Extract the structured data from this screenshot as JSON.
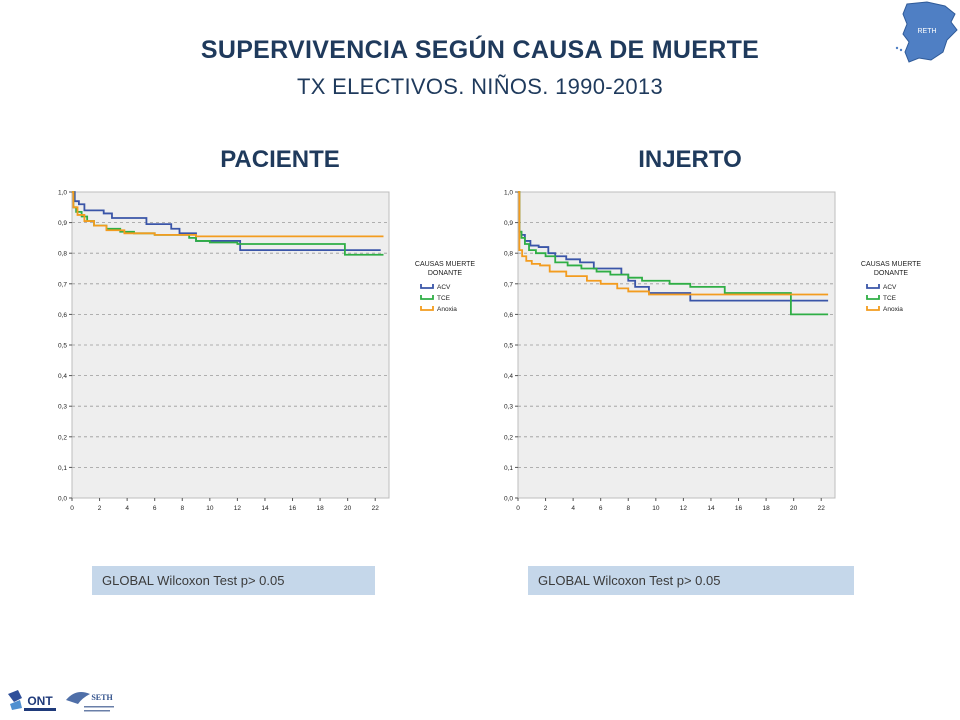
{
  "header": {
    "title": "SUPERVIVENCIA SEGÚN CAUSA DE MUERTE",
    "subtitle": "TX ELECTIVOS. NIÑOS. 1990-2013",
    "map_label": "RETH"
  },
  "logos": {
    "ont": "ONT",
    "seth": "SETH"
  },
  "colors": {
    "ACV": "#3a55a8",
    "TCE": "#2fae45",
    "Anoxia": "#f39c1f",
    "plot_bg": "#eeeeee",
    "header": "#1f3a5c",
    "test_box": "#c5d7ea"
  },
  "chart_data": [
    {
      "type": "line",
      "title": "PACIENTE",
      "step": true,
      "xlim": [
        0,
        23
      ],
      "ylim": [
        0,
        1
      ],
      "xticks": [
        "0",
        "2",
        "4",
        "6",
        "8",
        "10",
        "12",
        "14",
        "16",
        "18",
        "20",
        "22"
      ],
      "yticks": [
        "0,0",
        "0,1",
        "0,2",
        "0,3",
        "0,4",
        "0,5",
        "0,6",
        "0,7",
        "0,8",
        "0,9",
        "1,0"
      ],
      "grid": true,
      "legend_title": "CAUSAS MUERTE DONANTE",
      "legend_position": "right",
      "series": [
        {
          "name": "ACV",
          "x": [
            0,
            0.2,
            0.5,
            0.9,
            2.3,
            2.9,
            5.4,
            7.2,
            7.8,
            9.0,
            12.2,
            22.4
          ],
          "y": [
            1.0,
            0.97,
            0.96,
            0.94,
            0.93,
            0.915,
            0.895,
            0.88,
            0.865,
            0.84,
            0.81,
            0.81
          ]
        },
        {
          "name": "TCE",
          "x": [
            0,
            0.1,
            0.3,
            0.7,
            1.1,
            1.6,
            2.5,
            3.5,
            4.5,
            6.0,
            8.5,
            9.0,
            10.0,
            12.0,
            19.8,
            22.6
          ],
          "y": [
            1.0,
            0.95,
            0.935,
            0.92,
            0.905,
            0.89,
            0.88,
            0.87,
            0.865,
            0.86,
            0.85,
            0.84,
            0.835,
            0.83,
            0.795,
            0.795
          ]
        },
        {
          "name": "Anoxia",
          "x": [
            0,
            0.1,
            0.4,
            0.9,
            1.6,
            2.5,
            3.8,
            6.0,
            9.0,
            22.6
          ],
          "y": [
            1.0,
            0.95,
            0.925,
            0.905,
            0.89,
            0.875,
            0.865,
            0.86,
            0.855,
            0.855
          ]
        }
      ]
    },
    {
      "type": "line",
      "title": "INJERTO",
      "step": true,
      "xlim": [
        0,
        23
      ],
      "ylim": [
        0,
        1
      ],
      "xticks": [
        "0",
        "2",
        "4",
        "6",
        "8",
        "10",
        "12",
        "14",
        "16",
        "18",
        "20",
        "22"
      ],
      "yticks": [
        "0,0",
        "0,1",
        "0,2",
        "0,3",
        "0,4",
        "0,5",
        "0,6",
        "0,7",
        "0,8",
        "0,9",
        "1,0"
      ],
      "grid": true,
      "legend_title": "CAUSAS MUERTE DONANTE",
      "legend_position": "right",
      "series": [
        {
          "name": "ACV",
          "x": [
            0,
            0.1,
            0.25,
            0.5,
            0.9,
            1.5,
            2.2,
            2.7,
            3.5,
            4.5,
            5.5,
            7.5,
            8.0,
            8.5,
            9.5,
            12.5,
            22.5
          ],
          "y": [
            1.0,
            0.87,
            0.86,
            0.84,
            0.825,
            0.82,
            0.8,
            0.79,
            0.78,
            0.77,
            0.75,
            0.73,
            0.71,
            0.69,
            0.67,
            0.645,
            0.645
          ]
        },
        {
          "name": "TCE",
          "x": [
            0,
            0.1,
            0.25,
            0.5,
            0.8,
            1.3,
            2.0,
            2.7,
            3.6,
            4.6,
            5.7,
            6.7,
            8.0,
            9.0,
            11.0,
            12.5,
            15.0,
            19.8,
            22.5
          ],
          "y": [
            1.0,
            0.87,
            0.85,
            0.83,
            0.81,
            0.8,
            0.79,
            0.77,
            0.76,
            0.75,
            0.74,
            0.73,
            0.72,
            0.71,
            0.7,
            0.69,
            0.67,
            0.6,
            0.6
          ]
        },
        {
          "name": "Anoxia",
          "x": [
            0,
            0.1,
            0.3,
            0.6,
            1.0,
            1.6,
            2.3,
            3.5,
            5.0,
            6.0,
            7.2,
            8.0,
            9.5,
            22.5
          ],
          "y": [
            1.0,
            0.81,
            0.79,
            0.775,
            0.765,
            0.76,
            0.74,
            0.725,
            0.71,
            0.7,
            0.685,
            0.675,
            0.665,
            0.665
          ]
        }
      ]
    }
  ],
  "tests": {
    "left": "GLOBAL Wilcoxon Test p> 0.05",
    "right": "GLOBAL Wilcoxon Test p> 0.05"
  }
}
